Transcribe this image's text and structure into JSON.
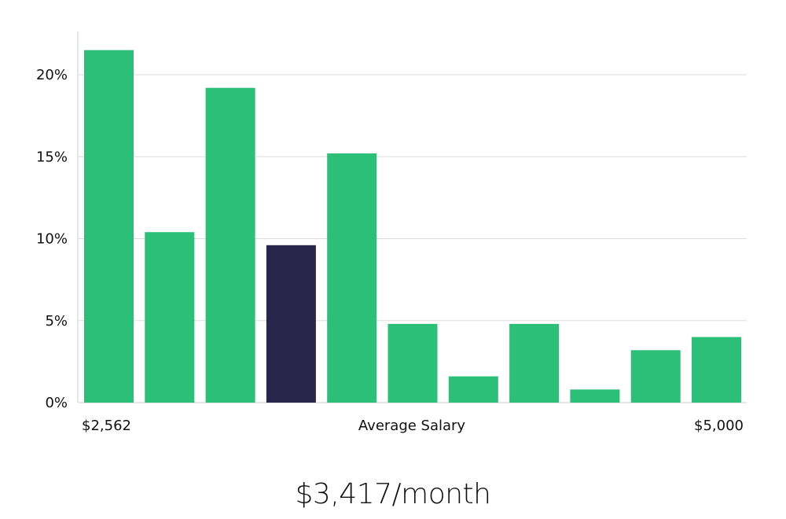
{
  "chart_data": {
    "type": "bar",
    "values": [
      21.5,
      10.4,
      19.2,
      9.6,
      15.2,
      4.8,
      1.6,
      4.8,
      0.8,
      3.2,
      4.0
    ],
    "highlight_index": 3,
    "y_ticks": [
      "0%",
      "5%",
      "10%",
      "15%",
      "20%"
    ],
    "y_tick_values": [
      0,
      5,
      10,
      15,
      20
    ],
    "ylim": [
      0,
      23
    ],
    "grid": true,
    "x_min_label": "$2,562",
    "x_center_label": "Average Salary",
    "x_max_label": "$5,000",
    "colors": {
      "bar": "#2bbf77",
      "highlight": "#29254a",
      "grid": "#dddddd",
      "axis": "#cccccc"
    }
  },
  "summary": "$3,417/month"
}
